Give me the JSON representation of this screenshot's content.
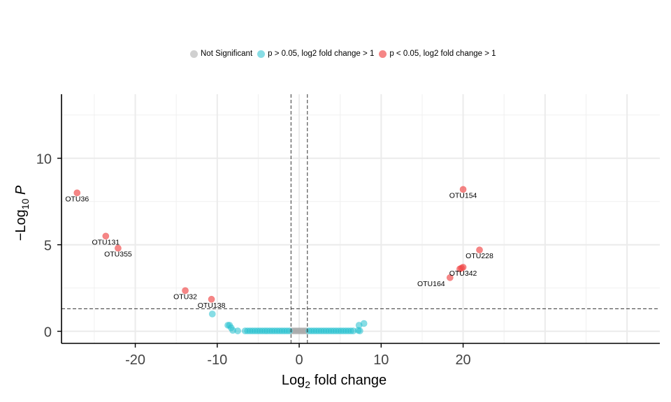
{
  "chart_data": {
    "type": "scatter",
    "title": "",
    "xlabel": {
      "main": "Log",
      "sub": "2",
      "rest": " fold change"
    },
    "ylabel": {
      "pre": "−Log",
      "sub": "10",
      "post": " P"
    },
    "xlim": [
      -29,
      44
    ],
    "ylim": [
      -0.7,
      13.7
    ],
    "x_ticks": [
      -20,
      -10,
      0,
      10,
      20
    ],
    "x_tick_labels": [
      "-20",
      "-10",
      "0",
      "10",
      "20"
    ],
    "y_ticks": [
      0,
      5,
      10
    ],
    "y_tick_labels": [
      "0",
      "5",
      "10"
    ],
    "grid": true,
    "fc_cutoff": 1,
    "p_cutoff_line": 1.3,
    "legend_position": "top",
    "legend": [
      {
        "label": "Not Significant",
        "color": "#a9a9a9"
      },
      {
        "label": "p > 0.05, log2 fold change > 1",
        "color": "#27c1cf"
      },
      {
        "label": "p < 0.05, log2 fold change > 1",
        "color": "#f04545"
      }
    ],
    "series": [
      {
        "group": "ns",
        "color": "#a9a9a9",
        "points": [
          [
            -0.9,
            0.02
          ],
          [
            -0.7,
            0.02
          ],
          [
            -0.5,
            0.02
          ],
          [
            -0.3,
            0.02
          ],
          [
            -0.1,
            0.02
          ],
          [
            0.1,
            0.02
          ],
          [
            0.3,
            0.02
          ],
          [
            0.5,
            0.02
          ],
          [
            0.7,
            0.02
          ],
          [
            0.9,
            0.02
          ]
        ]
      },
      {
        "group": "fc",
        "color": "#27c1cf",
        "points": [
          [
            -10.6,
            1.0
          ],
          [
            -8.7,
            0.35
          ],
          [
            -8.5,
            0.35
          ],
          [
            -8.3,
            0.2
          ],
          [
            -8.1,
            0.05
          ],
          [
            -7.5,
            0.02
          ],
          [
            -6.6,
            0.02
          ],
          [
            -6.3,
            0.02
          ],
          [
            -6.0,
            0.02
          ],
          [
            -5.7,
            0.02
          ],
          [
            -5.4,
            0.02
          ],
          [
            -5.1,
            0.02
          ],
          [
            -4.8,
            0.02
          ],
          [
            -4.5,
            0.02
          ],
          [
            -4.2,
            0.02
          ],
          [
            -3.9,
            0.02
          ],
          [
            -3.6,
            0.02
          ],
          [
            -3.3,
            0.02
          ],
          [
            -3.0,
            0.02
          ],
          [
            -2.7,
            0.02
          ],
          [
            -2.4,
            0.02
          ],
          [
            -2.1,
            0.02
          ],
          [
            -1.8,
            0.02
          ],
          [
            -1.5,
            0.02
          ],
          [
            -1.2,
            0.02
          ],
          [
            1.2,
            0.02
          ],
          [
            1.5,
            0.02
          ],
          [
            1.8,
            0.02
          ],
          [
            2.1,
            0.02
          ],
          [
            2.4,
            0.02
          ],
          [
            2.7,
            0.02
          ],
          [
            3.0,
            0.02
          ],
          [
            3.3,
            0.02
          ],
          [
            3.6,
            0.02
          ],
          [
            3.9,
            0.02
          ],
          [
            4.2,
            0.02
          ],
          [
            4.5,
            0.02
          ],
          [
            4.8,
            0.02
          ],
          [
            5.1,
            0.02
          ],
          [
            5.4,
            0.02
          ],
          [
            5.7,
            0.02
          ],
          [
            6.0,
            0.02
          ],
          [
            6.3,
            0.02
          ],
          [
            6.6,
            0.02
          ],
          [
            7.2,
            0.05
          ],
          [
            7.3,
            0.35
          ],
          [
            7.4,
            0.02
          ],
          [
            7.9,
            0.45
          ]
        ]
      },
      {
        "group": "sig",
        "color": "#f04545",
        "points": [
          [
            -27.1,
            8.0
          ],
          [
            -23.6,
            5.5
          ],
          [
            -22.1,
            4.8
          ],
          [
            -13.9,
            2.35
          ],
          [
            -10.7,
            1.85
          ],
          [
            20.0,
            8.2
          ],
          [
            22.0,
            4.7
          ],
          [
            19.6,
            3.6
          ],
          [
            19.8,
            3.65
          ],
          [
            20.0,
            3.7
          ],
          [
            18.4,
            3.1
          ]
        ]
      }
    ],
    "labels": [
      {
        "text": "OTU36",
        "x": -27.1,
        "y": 8.0,
        "dx": 0,
        "dy": 12
      },
      {
        "text": "OTU131",
        "x": -23.6,
        "y": 5.5,
        "dx": 0,
        "dy": 12
      },
      {
        "text": "OTU355",
        "x": -22.1,
        "y": 4.8,
        "dx": 0,
        "dy": 12
      },
      {
        "text": "OTU32",
        "x": -13.9,
        "y": 2.35,
        "dx": 0,
        "dy": 12
      },
      {
        "text": "OTU138",
        "x": -10.7,
        "y": 1.85,
        "dx": 0,
        "dy": 12
      },
      {
        "text": "OTU154",
        "x": 20.0,
        "y": 8.2,
        "dx": 0,
        "dy": 12
      },
      {
        "text": "OTU228",
        "x": 22.0,
        "y": 4.7,
        "dx": 0,
        "dy": 12
      },
      {
        "text": "OTU342",
        "x": 20.0,
        "y": 3.7,
        "dx": 0,
        "dy": 12
      },
      {
        "text": "OTU164",
        "x": 18.4,
        "y": 3.1,
        "dx": -27,
        "dy": 12
      }
    ]
  }
}
